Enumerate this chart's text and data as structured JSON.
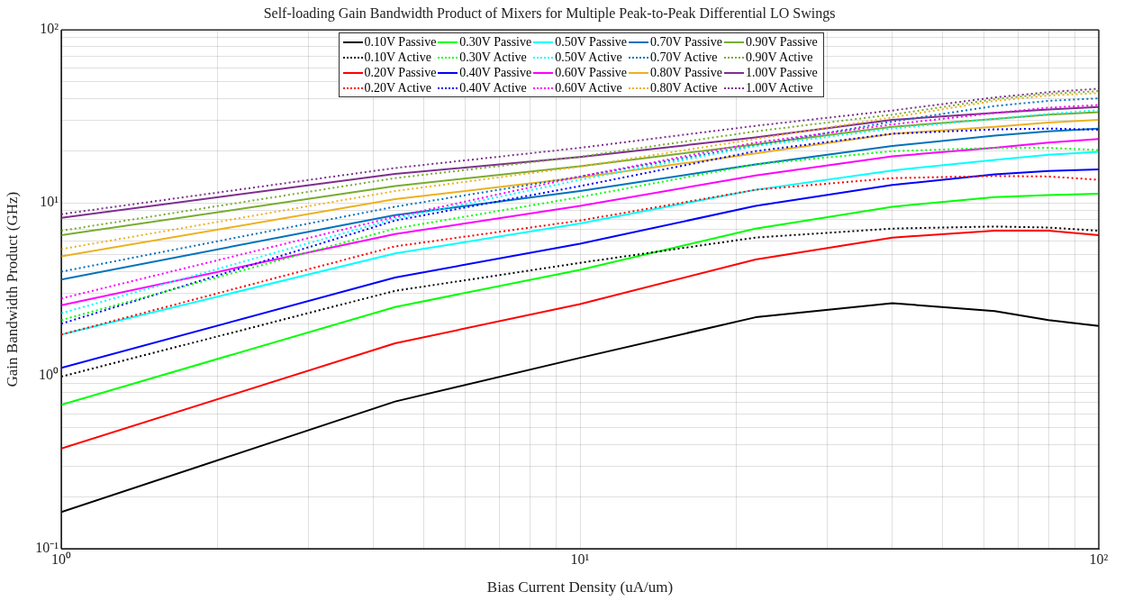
{
  "chart_data": {
    "type": "line",
    "title": "Self-loading Gain Bandwidth Product of Mixers for Multiple Peak-to-Peak Differential LO Swings",
    "xlabel": "Bias Current Density (uA/um)",
    "ylabel": "Gain Bandwidth Product (GHz)",
    "log": "xy",
    "grid": true,
    "legend": "top",
    "marker": "none",
    "x": [
      1,
      4.4,
      10,
      21.8,
      40,
      63,
      80,
      100
    ],
    "xlim": [
      1,
      100
    ],
    "ylim": [
      0.1,
      100
    ],
    "xticks": [
      {
        "value": 1,
        "label": "10⁰"
      },
      {
        "value": 2,
        "label": null
      },
      {
        "value": 3,
        "label": null
      },
      {
        "value": 4,
        "label": null
      },
      {
        "value": 5,
        "label": null
      },
      {
        "value": 6,
        "label": null
      },
      {
        "value": 7,
        "label": null
      },
      {
        "value": 8,
        "label": null
      },
      {
        "value": 9,
        "label": null
      },
      {
        "value": 10,
        "label": "10¹"
      },
      {
        "value": 20,
        "label": null
      },
      {
        "value": 30,
        "label": null
      },
      {
        "value": 40,
        "label": null
      },
      {
        "value": 50,
        "label": null
      },
      {
        "value": 60,
        "label": null
      },
      {
        "value": 70,
        "label": null
      },
      {
        "value": 80,
        "label": null
      },
      {
        "value": 90,
        "label": null
      },
      {
        "value": 100,
        "label": "10²"
      }
    ],
    "yticks": [
      {
        "value": 0.1,
        "label": "10⁻¹"
      },
      {
        "value": 0.2,
        "label": null
      },
      {
        "value": 0.3,
        "label": null
      },
      {
        "value": 0.4,
        "label": null
      },
      {
        "value": 0.5,
        "label": null
      },
      {
        "value": 0.6,
        "label": null
      },
      {
        "value": 0.7,
        "label": null
      },
      {
        "value": 0.8,
        "label": null
      },
      {
        "value": 0.9,
        "label": null
      },
      {
        "value": 1,
        "label": "10⁰"
      },
      {
        "value": 2,
        "label": null
      },
      {
        "value": 3,
        "label": null
      },
      {
        "value": 4,
        "label": null
      },
      {
        "value": 5,
        "label": null
      },
      {
        "value": 6,
        "label": null
      },
      {
        "value": 7,
        "label": null
      },
      {
        "value": 8,
        "label": null
      },
      {
        "value": 9,
        "label": null
      },
      {
        "value": 10,
        "label": "10¹"
      },
      {
        "value": 20,
        "label": null
      },
      {
        "value": 30,
        "label": null
      },
      {
        "value": 40,
        "label": null
      },
      {
        "value": 50,
        "label": null
      },
      {
        "value": 60,
        "label": null
      },
      {
        "value": 70,
        "label": null
      },
      {
        "value": 80,
        "label": null
      },
      {
        "value": 90,
        "label": null
      },
      {
        "value": 100,
        "label": "10²"
      }
    ],
    "series": [
      {
        "name": "0.10V Passive",
        "color": "#000000",
        "line_style": "solid",
        "values": [
          0.163,
          0.71,
          1.27,
          2.18,
          2.63,
          2.37,
          2.1,
          1.94
        ]
      },
      {
        "name": "0.10V Active",
        "color": "#000000",
        "line_style": "dotted",
        "values": [
          0.99,
          3.1,
          4.5,
          6.3,
          7.1,
          7.3,
          7.2,
          6.9
        ]
      },
      {
        "name": "0.20V Passive",
        "color": "#ff0000",
        "line_style": "solid",
        "values": [
          0.38,
          1.54,
          2.6,
          4.7,
          6.3,
          6.9,
          6.9,
          6.5
        ]
      },
      {
        "name": "0.20V Active",
        "color": "#ff0000",
        "line_style": "dotted",
        "values": [
          1.73,
          5.6,
          7.9,
          11.9,
          13.9,
          14.3,
          14.2,
          13.6
        ]
      },
      {
        "name": "0.30V Passive",
        "color": "#00ff00",
        "line_style": "solid",
        "values": [
          0.68,
          2.5,
          4.1,
          7.1,
          9.5,
          10.8,
          11.1,
          11.3
        ]
      },
      {
        "name": "0.30V Active",
        "color": "#00ff00",
        "line_style": "dotted",
        "values": [
          2.1,
          7.1,
          10.8,
          16.7,
          19.9,
          20.8,
          20.8,
          20.2
        ]
      },
      {
        "name": "0.40V Passive",
        "color": "#0000ff",
        "line_style": "solid",
        "values": [
          1.11,
          3.7,
          5.8,
          9.6,
          12.7,
          14.6,
          15.3,
          15.6
        ]
      },
      {
        "name": "0.40V Active",
        "color": "#0000ff",
        "line_style": "dotted",
        "values": [
          2.0,
          7.9,
          12.5,
          19.9,
          25.1,
          26.6,
          26.9,
          26.5
        ]
      },
      {
        "name": "0.50V Passive",
        "color": "#00ffff",
        "line_style": "solid",
        "values": [
          1.73,
          5.1,
          7.6,
          11.9,
          15.4,
          17.7,
          19.0,
          19.7
        ]
      },
      {
        "name": "0.50V Active",
        "color": "#00ffff",
        "line_style": "dotted",
        "values": [
          2.3,
          8.1,
          13.6,
          21.3,
          26.9,
          30.6,
          32.7,
          34.4
        ]
      },
      {
        "name": "0.60V Passive",
        "color": "#ff00ff",
        "line_style": "solid",
        "values": [
          2.56,
          6.6,
          9.6,
          14.4,
          18.6,
          20.8,
          22.3,
          23.4
        ]
      },
      {
        "name": "0.60V Active",
        "color": "#ff00ff",
        "line_style": "dotted",
        "values": [
          2.8,
          8.3,
          14.2,
          22.3,
          28.4,
          33.1,
          35.5,
          36.8
        ]
      },
      {
        "name": "0.70V Passive",
        "color": "#0072bd",
        "line_style": "solid",
        "values": [
          3.6,
          8.5,
          11.7,
          16.7,
          21.3,
          24.5,
          25.9,
          26.9
        ]
      },
      {
        "name": "0.70V Active",
        "color": "#0072bd",
        "line_style": "dotted",
        "values": [
          4.0,
          9.5,
          14.2,
          21.5,
          29.5,
          36.3,
          38.9,
          40.2
        ]
      },
      {
        "name": "0.80V Passive",
        "color": "#edb120",
        "line_style": "solid",
        "values": [
          4.9,
          10.5,
          14.0,
          19.3,
          25.1,
          27.5,
          29.1,
          30.2
        ]
      },
      {
        "name": "0.80V Active",
        "color": "#edb120",
        "line_style": "dotted",
        "values": [
          5.4,
          11.7,
          16.2,
          23.4,
          31.2,
          38.9,
          41.7,
          43.1
        ]
      },
      {
        "name": "0.90V Passive",
        "color": "#77ac30",
        "line_style": "solid",
        "values": [
          6.5,
          12.5,
          16.3,
          21.8,
          27.5,
          30.6,
          32.4,
          33.4
        ]
      },
      {
        "name": "0.90V Active",
        "color": "#77ac30",
        "line_style": "dotted",
        "values": [
          6.9,
          13.9,
          18.5,
          25.9,
          32.4,
          39.8,
          42.7,
          44.3
        ]
      },
      {
        "name": "1.00V Passive",
        "color": "#7e2f8e",
        "line_style": "solid",
        "values": [
          8.2,
          14.7,
          18.4,
          23.9,
          30.2,
          33.1,
          34.7,
          35.8
        ]
      },
      {
        "name": "1.00V Active",
        "color": "#7e2f8e",
        "line_style": "dotted",
        "values": [
          8.6,
          15.9,
          20.8,
          27.9,
          34.2,
          40.7,
          43.7,
          45.7
        ]
      }
    ]
  }
}
